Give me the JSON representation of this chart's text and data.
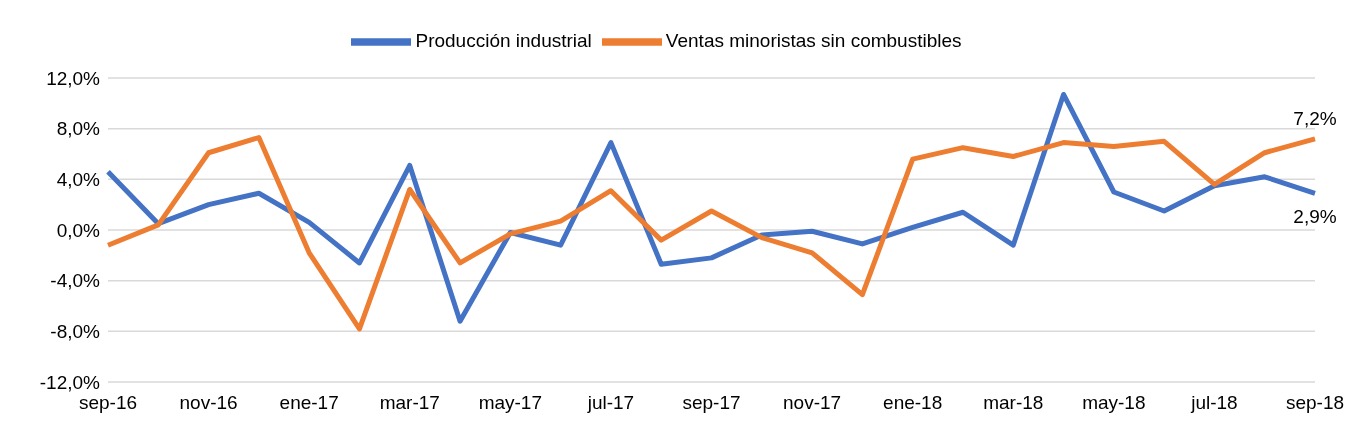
{
  "chart_data": {
    "type": "line",
    "categories": [
      "sep-16",
      null,
      "nov-16",
      null,
      "ene-17",
      null,
      "mar-17",
      null,
      "may-17",
      null,
      "jul-17",
      null,
      "sep-17",
      null,
      "nov-17",
      null,
      "ene-18",
      null,
      "mar-18",
      null,
      "may-18",
      null,
      "jul-18",
      null,
      "sep-18"
    ],
    "series": [
      {
        "name": "Producción industrial",
        "color": "#4472c4",
        "values": [
          4.6,
          0.5,
          2.0,
          2.9,
          0.6,
          -2.6,
          5.1,
          -7.2,
          -0.2,
          -1.2,
          6.9,
          -2.7,
          -2.2,
          -0.4,
          -0.1,
          -1.1,
          0.2,
          1.4,
          -1.2,
          10.7,
          3.0,
          1.5,
          3.5,
          4.2,
          2.9
        ],
        "value_labels": [
          null,
          null,
          null,
          null,
          null,
          null,
          null,
          null,
          null,
          null,
          null,
          null,
          null,
          null,
          null,
          null,
          null,
          null,
          null,
          null,
          null,
          null,
          null,
          null,
          "2,9%"
        ]
      },
      {
        "name": "Ventas minoristas sin combustibles",
        "color": "#ed7d31",
        "values": [
          -1.2,
          0.4,
          6.1,
          7.3,
          -1.8,
          -7.8,
          3.2,
          -2.6,
          -0.3,
          0.7,
          3.1,
          -0.8,
          1.5,
          -0.6,
          -1.8,
          -5.1,
          5.6,
          6.5,
          5.8,
          6.9,
          6.6,
          7.0,
          3.6,
          6.1,
          7.2
        ],
        "value_labels": [
          null,
          null,
          null,
          null,
          null,
          null,
          null,
          null,
          null,
          null,
          null,
          null,
          null,
          null,
          null,
          null,
          null,
          null,
          null,
          null,
          null,
          null,
          null,
          null,
          "7,2%"
        ]
      }
    ],
    "ylim": [
      -12,
      12
    ],
    "yticks": [
      {
        "value": -12,
        "label": "-12,0%"
      },
      {
        "value": -8,
        "label": "-8,0%"
      },
      {
        "value": -4,
        "label": "-4,0%"
      },
      {
        "value": 0,
        "label": "0,0%"
      },
      {
        "value": 4,
        "label": "4,0%"
      },
      {
        "value": 8,
        "label": "8,0%"
      },
      {
        "value": 12,
        "label": "12,0%"
      }
    ],
    "grid": "y",
    "legend": "top",
    "marker": "none",
    "line_style": "solid"
  }
}
